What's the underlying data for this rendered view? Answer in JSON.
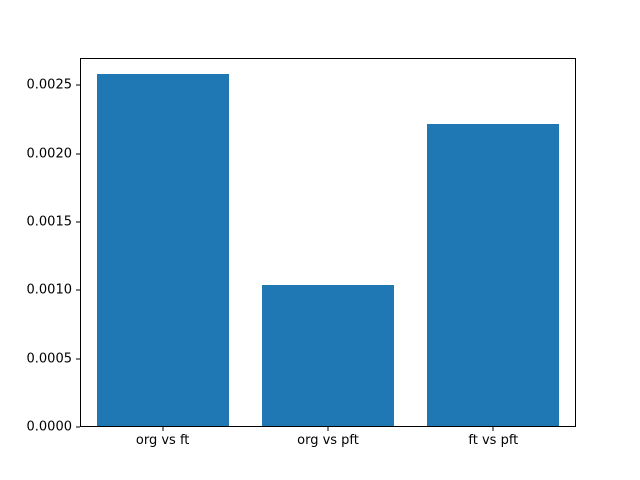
{
  "chart_data": {
    "type": "bar",
    "categories": [
      "org vs ft",
      "org vs pft",
      "ft vs pft"
    ],
    "values": [
      0.00258,
      0.00104,
      0.00222
    ],
    "title": "",
    "xlabel": "",
    "ylabel": "",
    "ylim": [
      0,
      0.0027
    ],
    "yticks": [
      0.0,
      0.0005,
      0.001,
      0.0015,
      0.002,
      0.0025
    ],
    "ytick_labels": [
      "0.0000",
      "0.0005",
      "0.0010",
      "0.0015",
      "0.0020",
      "0.0025"
    ],
    "bar_color": "#1f77b4",
    "background": "#ffffff",
    "grid": false,
    "legend": false,
    "bar_width_fraction": 0.8
  }
}
